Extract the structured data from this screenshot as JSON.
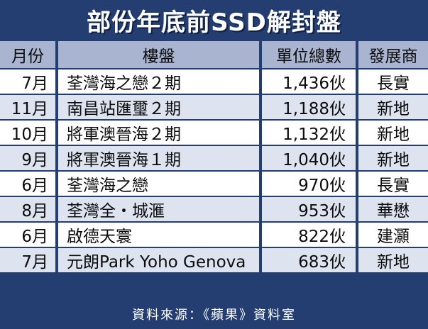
{
  "title": "部份年底前SSD解封盤",
  "headers": {
    "month": "月份",
    "project": "樓盤",
    "units": "單位總數",
    "developer": "發展商"
  },
  "rows": [
    {
      "month": "7月",
      "project": "荃灣海之戀２期",
      "units": "1,436伙",
      "developer": "長實"
    },
    {
      "month": "11月",
      "project": "南昌站匯璽２期",
      "units": "1,188伙",
      "developer": "新地"
    },
    {
      "month": "10月",
      "project": "將軍澳晉海２期",
      "units": "1,132伙",
      "developer": "新地"
    },
    {
      "month": "9月",
      "project": "將軍澳晉海１期",
      "units": "1,040伙",
      "developer": "新地"
    },
    {
      "month": "6月",
      "project": "荃灣海之戀",
      "units": "970伙",
      "developer": "長實"
    },
    {
      "month": "8月",
      "project": "荃灣全・城滙",
      "units": "953伙",
      "developer": "華懋"
    },
    {
      "month": "6月",
      "project": "啟德天寰",
      "units": "822伙",
      "developer": "建灝"
    },
    {
      "month": "7月",
      "project": "元朗Park Yoho Genova",
      "units": "683伙",
      "developer": "新地"
    }
  ],
  "footer": "資料來源：《蘋果》資料室",
  "colors": {
    "frame": "#243e72",
    "header_bg": "#a9b5d0",
    "row_alt": "#dde3ef",
    "row": "#ffffff"
  }
}
